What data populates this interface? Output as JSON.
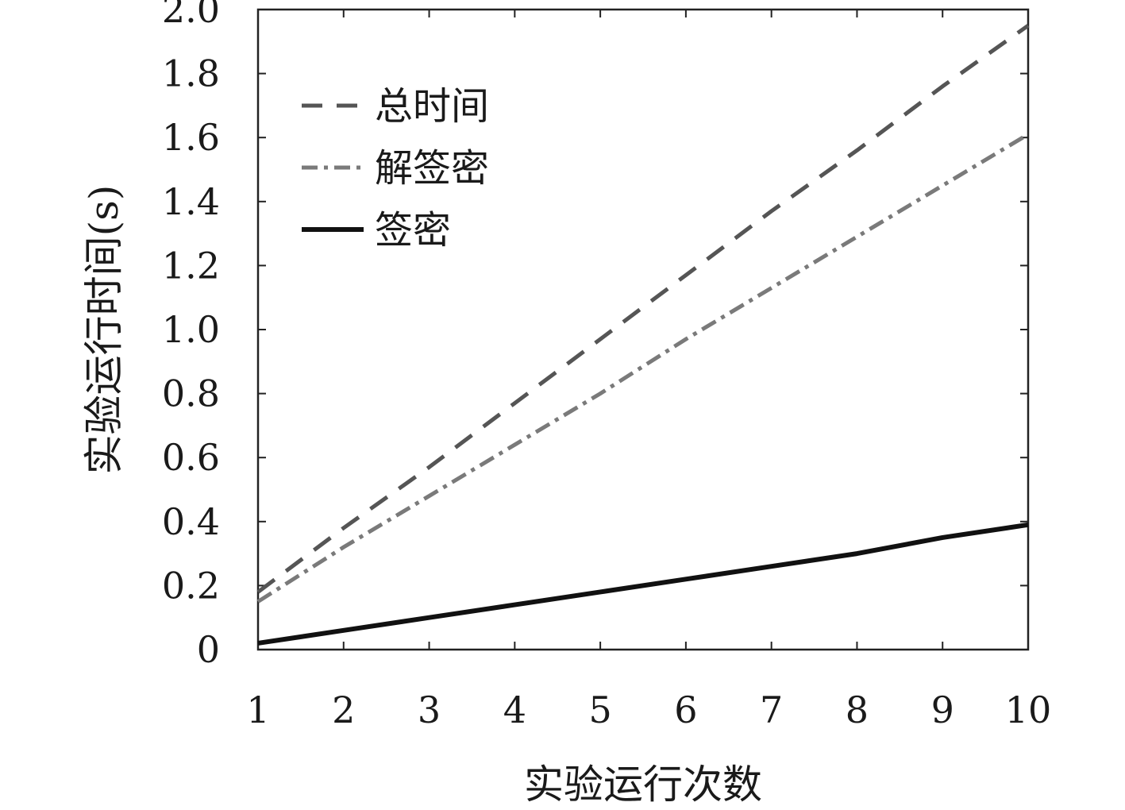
{
  "chart_data": {
    "type": "line",
    "xlabel": "实验运行次数",
    "ylabel": "实验运行时间(s)",
    "x": [
      1,
      2,
      3,
      4,
      5,
      6,
      7,
      8,
      9,
      10
    ],
    "xlim": [
      1,
      10
    ],
    "ylim": [
      0,
      2.0
    ],
    "x_ticks": [
      "1",
      "2",
      "3",
      "4",
      "5",
      "6",
      "7",
      "8",
      "9",
      "10"
    ],
    "y_ticks": [
      "0",
      "0.2",
      "0.4",
      "0.6",
      "0.8",
      "1.0",
      "1.2",
      "1.4",
      "1.6",
      "1.8",
      "2.0"
    ],
    "grid": false,
    "legend_position": "top-left",
    "series": [
      {
        "name": "总时间",
        "style": "dashed",
        "color": "#555555",
        "values": [
          0.18,
          0.38,
          0.57,
          0.77,
          0.97,
          1.17,
          1.37,
          1.56,
          1.76,
          1.95
        ]
      },
      {
        "name": "解签密",
        "style": "dash-dot",
        "color": "#7a7a7a",
        "values": [
          0.15,
          0.32,
          0.48,
          0.64,
          0.8,
          0.97,
          1.13,
          1.29,
          1.45,
          1.61
        ]
      },
      {
        "name": "签密",
        "style": "solid",
        "color": "#111111",
        "values": [
          0.02,
          0.06,
          0.1,
          0.14,
          0.18,
          0.22,
          0.26,
          0.3,
          0.35,
          0.39
        ]
      }
    ]
  }
}
